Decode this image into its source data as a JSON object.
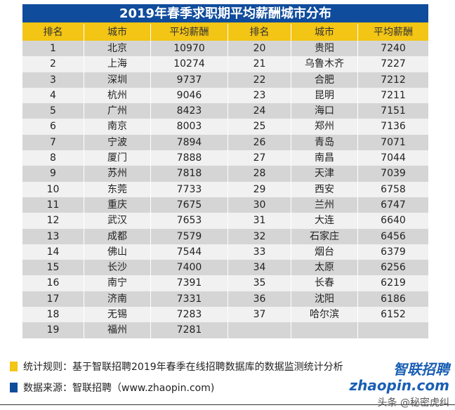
{
  "title": "2019年春季求职期平均薪酬城市分布",
  "headers": [
    "排名",
    "城市",
    "平均薪酬",
    "排名",
    "城市",
    "平均薪酬"
  ],
  "left": [
    [
      "1",
      "北京",
      "10970"
    ],
    [
      "2",
      "上海",
      "10274"
    ],
    [
      "3",
      "深圳",
      "9737"
    ],
    [
      "4",
      "杭州",
      "9046"
    ],
    [
      "5",
      "广州",
      "8423"
    ],
    [
      "6",
      "南京",
      "8003"
    ],
    [
      "7",
      "宁波",
      "7894"
    ],
    [
      "8",
      "厦门",
      "7888"
    ],
    [
      "9",
      "苏州",
      "7818"
    ],
    [
      "10",
      "东莞",
      "7733"
    ],
    [
      "11",
      "重庆",
      "7675"
    ],
    [
      "12",
      "武汉",
      "7653"
    ],
    [
      "13",
      "成都",
      "7579"
    ],
    [
      "14",
      "佛山",
      "7544"
    ],
    [
      "15",
      "长沙",
      "7400"
    ],
    [
      "16",
      "南宁",
      "7391"
    ],
    [
      "17",
      "济南",
      "7331"
    ],
    [
      "18",
      "无锡",
      "7283"
    ],
    [
      "19",
      "福州",
      "7281"
    ]
  ],
  "right": [
    [
      "20",
      "贵阳",
      "7240"
    ],
    [
      "21",
      "乌鲁木齐",
      "7227"
    ],
    [
      "22",
      "合肥",
      "7212"
    ],
    [
      "23",
      "昆明",
      "7211"
    ],
    [
      "24",
      "海口",
      "7151"
    ],
    [
      "25",
      "郑州",
      "7136"
    ],
    [
      "26",
      "青岛",
      "7071"
    ],
    [
      "27",
      "南昌",
      "7044"
    ],
    [
      "28",
      "天津",
      "7039"
    ],
    [
      "29",
      "西安",
      "6758"
    ],
    [
      "30",
      "兰州",
      "6747"
    ],
    [
      "31",
      "大连",
      "6640"
    ],
    [
      "32",
      "石家庄",
      "6456"
    ],
    [
      "33",
      "烟台",
      "6379"
    ],
    [
      "34",
      "太原",
      "6256"
    ],
    [
      "35",
      "长春",
      "6219"
    ],
    [
      "36",
      "沈阳",
      "6186"
    ],
    [
      "37",
      "哈尔滨",
      "6152"
    ],
    [
      "",
      "",
      ""
    ]
  ],
  "footer": {
    "rule": "统计规则：基于智联招聘2019年春季在线招聘数据库的数据监测统计分析",
    "source": "数据来源：智联招聘（www.zhaopin.com)"
  },
  "logo": {
    "cn": "智联招聘",
    "en": "zhaopin.com",
    "watermark": "头条 @秘密虎纠"
  },
  "colors": {
    "blue": "#0f4c9c",
    "yellow": "#f3c514"
  }
}
